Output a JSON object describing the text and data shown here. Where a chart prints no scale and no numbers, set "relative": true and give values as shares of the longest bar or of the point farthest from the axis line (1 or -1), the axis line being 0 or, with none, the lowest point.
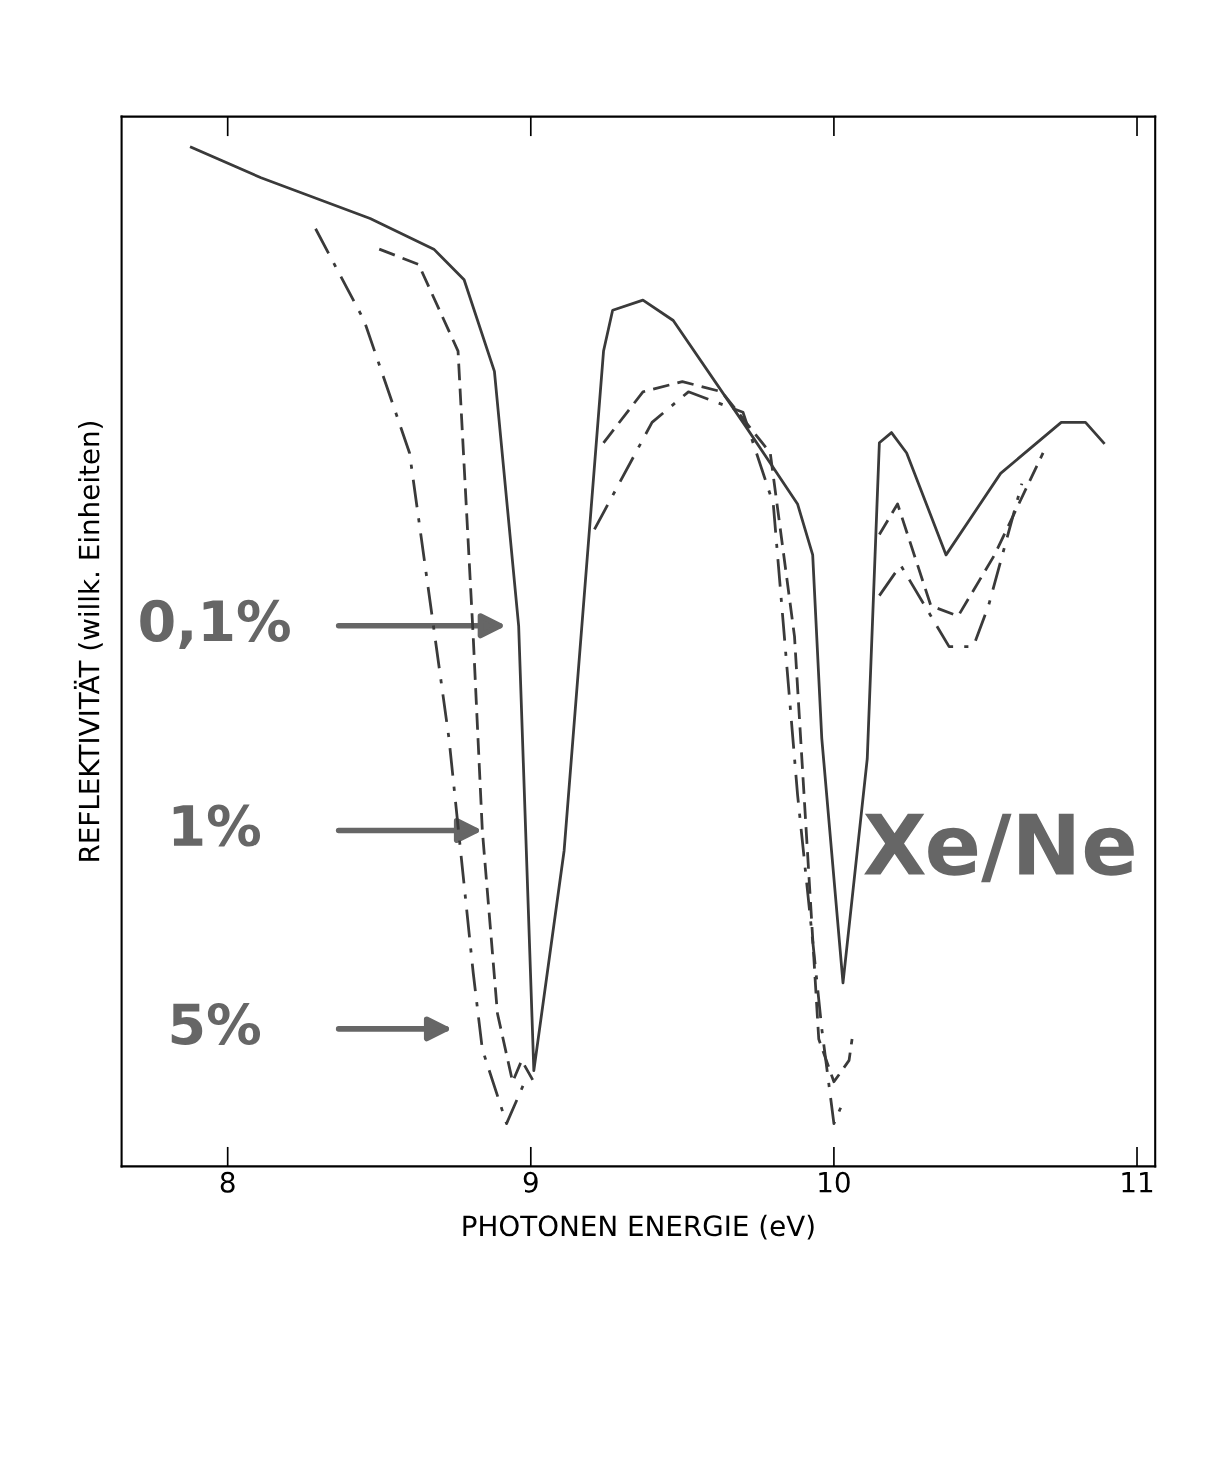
{
  "chart_data": {
    "type": "line",
    "relative": true,
    "xlabel": "PHOTONEN ENERGIE (eV)",
    "ylabel": "REFLEKTIVITÄT (willk. Einheiten)",
    "xlim": [
      7.65,
      11.06
    ],
    "xticks": [
      8,
      9,
      10,
      11
    ],
    "grid": false,
    "legend": false,
    "series": [
      {
        "color": "#3a3a3a",
        "line_style": "solid",
        "x": [
          7.88,
          8.11,
          8.47,
          8.68,
          8.78,
          8.88,
          8.96,
          9.01,
          9.11,
          9.24,
          9.27,
          9.37,
          9.47,
          9.7,
          9.88,
          9.93,
          9.96,
          10.03,
          10.11,
          10.15,
          10.19,
          10.24,
          10.37,
          10.55,
          10.75,
          10.83,
          10.89
        ],
        "values": [
          1.0,
          0.97,
          0.93,
          0.9,
          0.87,
          0.78,
          0.53,
          0.094,
          0.31,
          0.8,
          0.84,
          0.85,
          0.83,
          0.73,
          0.65,
          0.6,
          0.42,
          0.18,
          0.4,
          0.71,
          0.72,
          0.7,
          0.6,
          0.68,
          0.73,
          0.73,
          0.71
        ]
      },
      {
        "color": "#3a3a3a",
        "line_style": "dashed",
        "x": [
          8.5,
          8.63,
          8.76,
          8.81,
          8.84,
          8.89,
          8.94,
          8.97,
          9.01,
          9.1,
          9.24,
          9.37,
          9.5,
          9.63,
          9.79,
          9.87,
          9.95,
          10.0,
          10.05,
          10.06,
          10.1,
          10.15,
          10.21,
          10.32,
          10.41,
          10.53,
          10.69
        ],
        "values": [
          0.9,
          0.885,
          0.8,
          0.52,
          0.33,
          0.15,
          0.083,
          0.104,
          0.083,
          null,
          0.71,
          0.76,
          0.77,
          0.76,
          0.7,
          0.52,
          0.125,
          0.083,
          0.104,
          0.125,
          null,
          0.62,
          0.65,
          0.55,
          0.54,
          0.6,
          0.7
        ]
      },
      {
        "color": "#3a3a3a",
        "line_style": "dashdot",
        "x": [
          8.29,
          8.45,
          8.6,
          8.73,
          8.81,
          8.84,
          8.92,
          8.98,
          9.1,
          9.21,
          9.4,
          9.52,
          9.7,
          9.8,
          9.88,
          9.96,
          10.0,
          10.03,
          10.1,
          10.15,
          10.22,
          10.38,
          10.46,
          10.51,
          10.62
        ],
        "values": [
          0.92,
          0.83,
          0.7,
          0.42,
          0.19,
          0.115,
          0.042,
          0.083,
          null,
          0.625,
          0.73,
          0.76,
          0.74,
          0.65,
          0.365,
          0.135,
          0.042,
          0.063,
          null,
          0.56,
          0.59,
          0.51,
          0.51,
          0.55,
          0.67
        ]
      }
    ],
    "annotations": [
      "0,1%",
      "1%",
      "5%",
      "Xe/Ne"
    ]
  }
}
